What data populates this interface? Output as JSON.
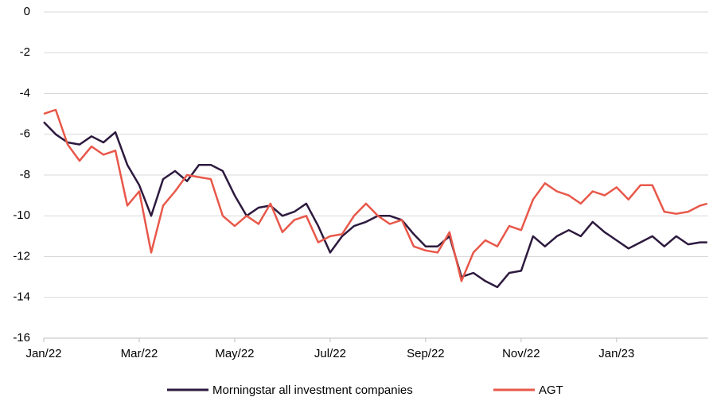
{
  "chart_data": {
    "type": "line",
    "x": [
      0,
      0.25,
      0.5,
      0.75,
      1,
      1.25,
      1.5,
      1.75,
      2,
      2.25,
      2.5,
      2.75,
      3,
      3.25,
      3.5,
      3.75,
      4,
      4.25,
      4.5,
      4.75,
      5,
      5.25,
      5.5,
      5.75,
      6,
      6.25,
      6.5,
      6.75,
      7,
      7.25,
      7.5,
      7.75,
      8,
      8.25,
      8.5,
      8.75,
      9,
      9.25,
      9.5,
      9.75,
      10,
      10.25,
      10.5,
      10.75,
      11,
      11.25,
      11.5,
      11.75,
      12,
      12.25,
      12.5,
      12.75,
      13,
      13.25,
      13.5,
      13.75,
      13.9
    ],
    "series": [
      {
        "name": "Morningstar all investment companies",
        "color": "#2d1a3e",
        "values": [
          -5.4,
          -6.0,
          -6.4,
          -6.5,
          -6.1,
          -6.4,
          -5.9,
          -7.5,
          -8.5,
          -10.0,
          -8.2,
          -7.8,
          -8.3,
          -7.5,
          -7.5,
          -7.8,
          -9.0,
          -10.0,
          -9.6,
          -9.5,
          -10.0,
          -9.8,
          -9.4,
          -10.5,
          -11.8,
          -11.0,
          -10.5,
          -10.3,
          -10.0,
          -10.0,
          -10.2,
          -10.9,
          -11.5,
          -11.5,
          -11.0,
          -13.0,
          -12.8,
          -13.2,
          -13.5,
          -12.8,
          -12.7,
          -11.0,
          -11.5,
          -11.0,
          -10.7,
          -11.0,
          -10.3,
          -10.8,
          -11.2,
          -11.6,
          -11.3,
          -11.0,
          -11.5,
          -11.0,
          -11.4,
          -11.3,
          -11.3
        ]
      },
      {
        "name": "AGT",
        "color": "#e8584a",
        "values": [
          -5.0,
          -4.8,
          -6.5,
          -7.3,
          -6.6,
          -7.0,
          -6.8,
          -9.5,
          -8.8,
          -11.8,
          -9.5,
          -8.8,
          -8.0,
          -8.1,
          -8.2,
          -10.0,
          -10.5,
          -10.0,
          -10.4,
          -9.4,
          -10.8,
          -10.2,
          -10.0,
          -11.3,
          -11.0,
          -10.9,
          -10.0,
          -9.4,
          -10.0,
          -10.4,
          -10.2,
          -11.5,
          -11.7,
          -11.8,
          -10.8,
          -13.2,
          -11.8,
          -11.2,
          -11.5,
          -10.5,
          -10.7,
          -9.2,
          -8.4,
          -8.8,
          -9.0,
          -9.4,
          -8.8,
          -9.0,
          -8.6,
          -9.2,
          -8.5,
          -8.5,
          -9.8,
          -9.9,
          -9.8,
          -9.5,
          -9.4
        ]
      }
    ],
    "xlim": [
      0,
      13.92
    ],
    "xticks": [
      {
        "value": 0,
        "label": "Jan/22"
      },
      {
        "value": 2,
        "label": "Mar/22"
      },
      {
        "value": 4,
        "label": "May/22"
      },
      {
        "value": 6,
        "label": "Jul/22"
      },
      {
        "value": 8,
        "label": "Sep/22"
      },
      {
        "value": 10,
        "label": "Nov/22"
      },
      {
        "value": 12,
        "label": "Jan/23"
      }
    ],
    "ylim": [
      -16,
      0
    ],
    "yticks": [
      0,
      -2,
      -4,
      -6,
      -8,
      -10,
      -12,
      -14,
      -16
    ],
    "grid": true,
    "legend": "bottom"
  }
}
